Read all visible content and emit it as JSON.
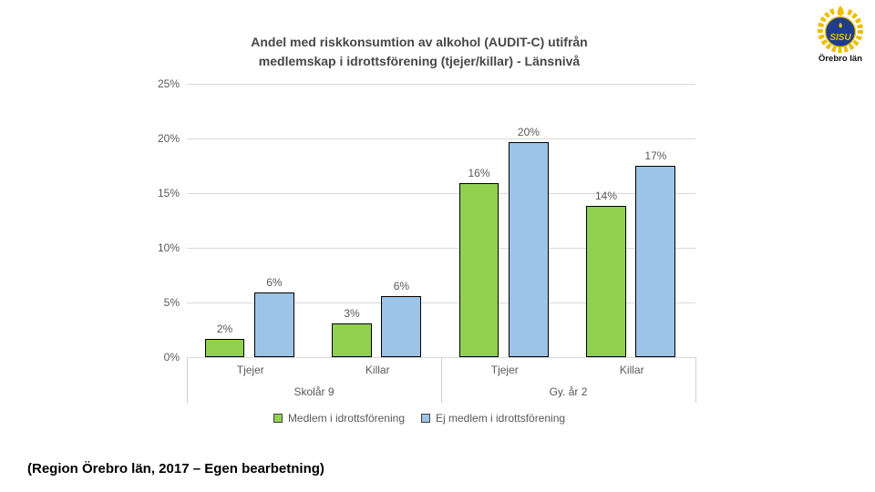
{
  "page": {
    "caption": "(Region Örebro län, 2017 – Egen bearbetning)"
  },
  "logo": {
    "name": "SISU Idrottsutbildarna logo",
    "circle_text": "SISU",
    "region_label": "Örebro län",
    "colors": {
      "blue": "#1e3d8f",
      "yellow": "#edbe00"
    }
  },
  "chart_data": {
    "type": "bar",
    "title": "Andel med riskkonsumtion av alkohol (AUDIT-C) utifrån\nmedlemskap i idrottsförening (tjejer/killar) - Länsnivå",
    "ylim": [
      0,
      25
    ],
    "ytick_labels": [
      "0%",
      "5%",
      "10%",
      "15%",
      "20%",
      "25%"
    ],
    "grid": true,
    "legend_position": "bottom",
    "group_labels": [
      "Skolår 9",
      "Gy. år 2"
    ],
    "categories": [
      "Tjejer",
      "Killar",
      "Tjejer",
      "Killar"
    ],
    "series": [
      {
        "name": "Medlem i idrottsförening",
        "color": "#92d050",
        "values": [
          2,
          3,
          16,
          14
        ],
        "labels": [
          "2%",
          "3%",
          "16%",
          "14%"
        ],
        "bar_heights_pct": [
          1.7,
          3.1,
          15.9,
          13.8
        ]
      },
      {
        "name": "Ej medlem i idrottsförening",
        "color": "#9dc3e6",
        "values": [
          6,
          6,
          20,
          17
        ],
        "labels": [
          "6%",
          "6%",
          "20%",
          "17%"
        ],
        "bar_heights_pct": [
          5.9,
          5.6,
          19.7,
          17.5
        ]
      }
    ]
  }
}
